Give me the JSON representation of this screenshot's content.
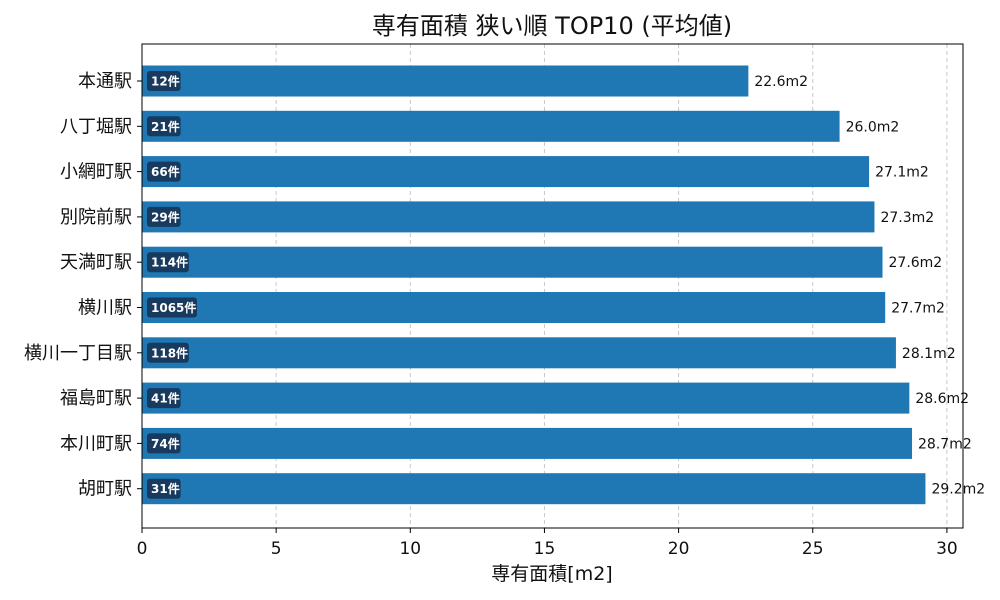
{
  "chart_data": {
    "type": "bar",
    "orientation": "horizontal",
    "title": "専有面積 狭い順 TOP10 (平均値)",
    "xlabel": "専有面積[m2]",
    "ylabel": "",
    "xlim": [
      0,
      30.6
    ],
    "xticks": [
      0,
      5,
      10,
      15,
      20,
      25,
      30
    ],
    "grid": {
      "x": true,
      "y": false,
      "style": "dashed"
    },
    "categories": [
      "本通駅",
      "八丁堀駅",
      "小網町駅",
      "別院前駅",
      "天満町駅",
      "横川駅",
      "横川一丁目駅",
      "福島町駅",
      "本川町駅",
      "胡町駅"
    ],
    "values": [
      22.6,
      26.0,
      27.1,
      27.3,
      27.6,
      27.7,
      28.1,
      28.6,
      28.7,
      29.2
    ],
    "value_labels": [
      "22.6m2",
      "26.0m2",
      "27.1m2",
      "27.3m2",
      "27.6m2",
      "27.7m2",
      "28.1m2",
      "28.6m2",
      "28.7m2",
      "29.2m2"
    ],
    "count_labels": [
      "12件",
      "21件",
      "66件",
      "29件",
      "114件",
      "1065件",
      "118件",
      "41件",
      "74件",
      "31件"
    ],
    "bar_color": "#1f77b4",
    "badge_color": "#173a5e"
  }
}
